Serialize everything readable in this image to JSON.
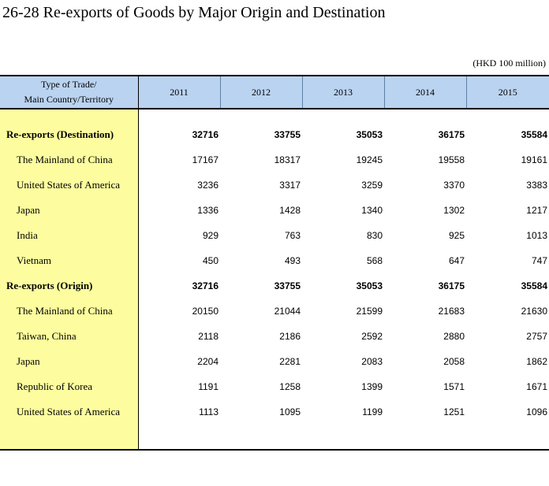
{
  "title": "26-28  Re-exports of Goods by Major Origin and Destination",
  "unit": "(HKD 100 million)",
  "header": {
    "label_line1": "Type of Trade/",
    "label_line2": "Main Country/Territory",
    "years": [
      "2011",
      "2012",
      "2013",
      "2014",
      "2015"
    ]
  },
  "rows": [
    {
      "label": "Re-exports (Destination)",
      "values": [
        "32716",
        "33755",
        "35053",
        "36175",
        "35584"
      ]
    },
    {
      "label": "The Mainland of China",
      "values": [
        "17167",
        "18317",
        "19245",
        "19558",
        "19161"
      ]
    },
    {
      "label": "United States of America",
      "values": [
        "3236",
        "3317",
        "3259",
        "3370",
        "3383"
      ]
    },
    {
      "label": "Japan",
      "values": [
        "1336",
        "1428",
        "1340",
        "1302",
        "1217"
      ]
    },
    {
      "label": "India",
      "values": [
        "929",
        "763",
        "830",
        "925",
        "1013"
      ]
    },
    {
      "label": "Vietnam",
      "values": [
        "450",
        "493",
        "568",
        "647",
        "747"
      ]
    },
    {
      "label": "Re-exports (Origin)",
      "values": [
        "32716",
        "33755",
        "35053",
        "36175",
        "35584"
      ]
    },
    {
      "label": "The Mainland of China",
      "values": [
        "20150",
        "21044",
        "21599",
        "21683",
        "21630"
      ]
    },
    {
      "label": "Taiwan, China",
      "values": [
        "2118",
        "2186",
        "2592",
        "2880",
        "2757"
      ]
    },
    {
      "label": "Japan",
      "values": [
        "2204",
        "2281",
        "2083",
        "2058",
        "1862"
      ]
    },
    {
      "label": "Republic of Korea",
      "values": [
        "1191",
        "1258",
        "1399",
        "1571",
        "1671"
      ]
    },
    {
      "label": "United States of America",
      "values": [
        "1113",
        "1095",
        "1199",
        "1251",
        "1096"
      ]
    }
  ]
}
